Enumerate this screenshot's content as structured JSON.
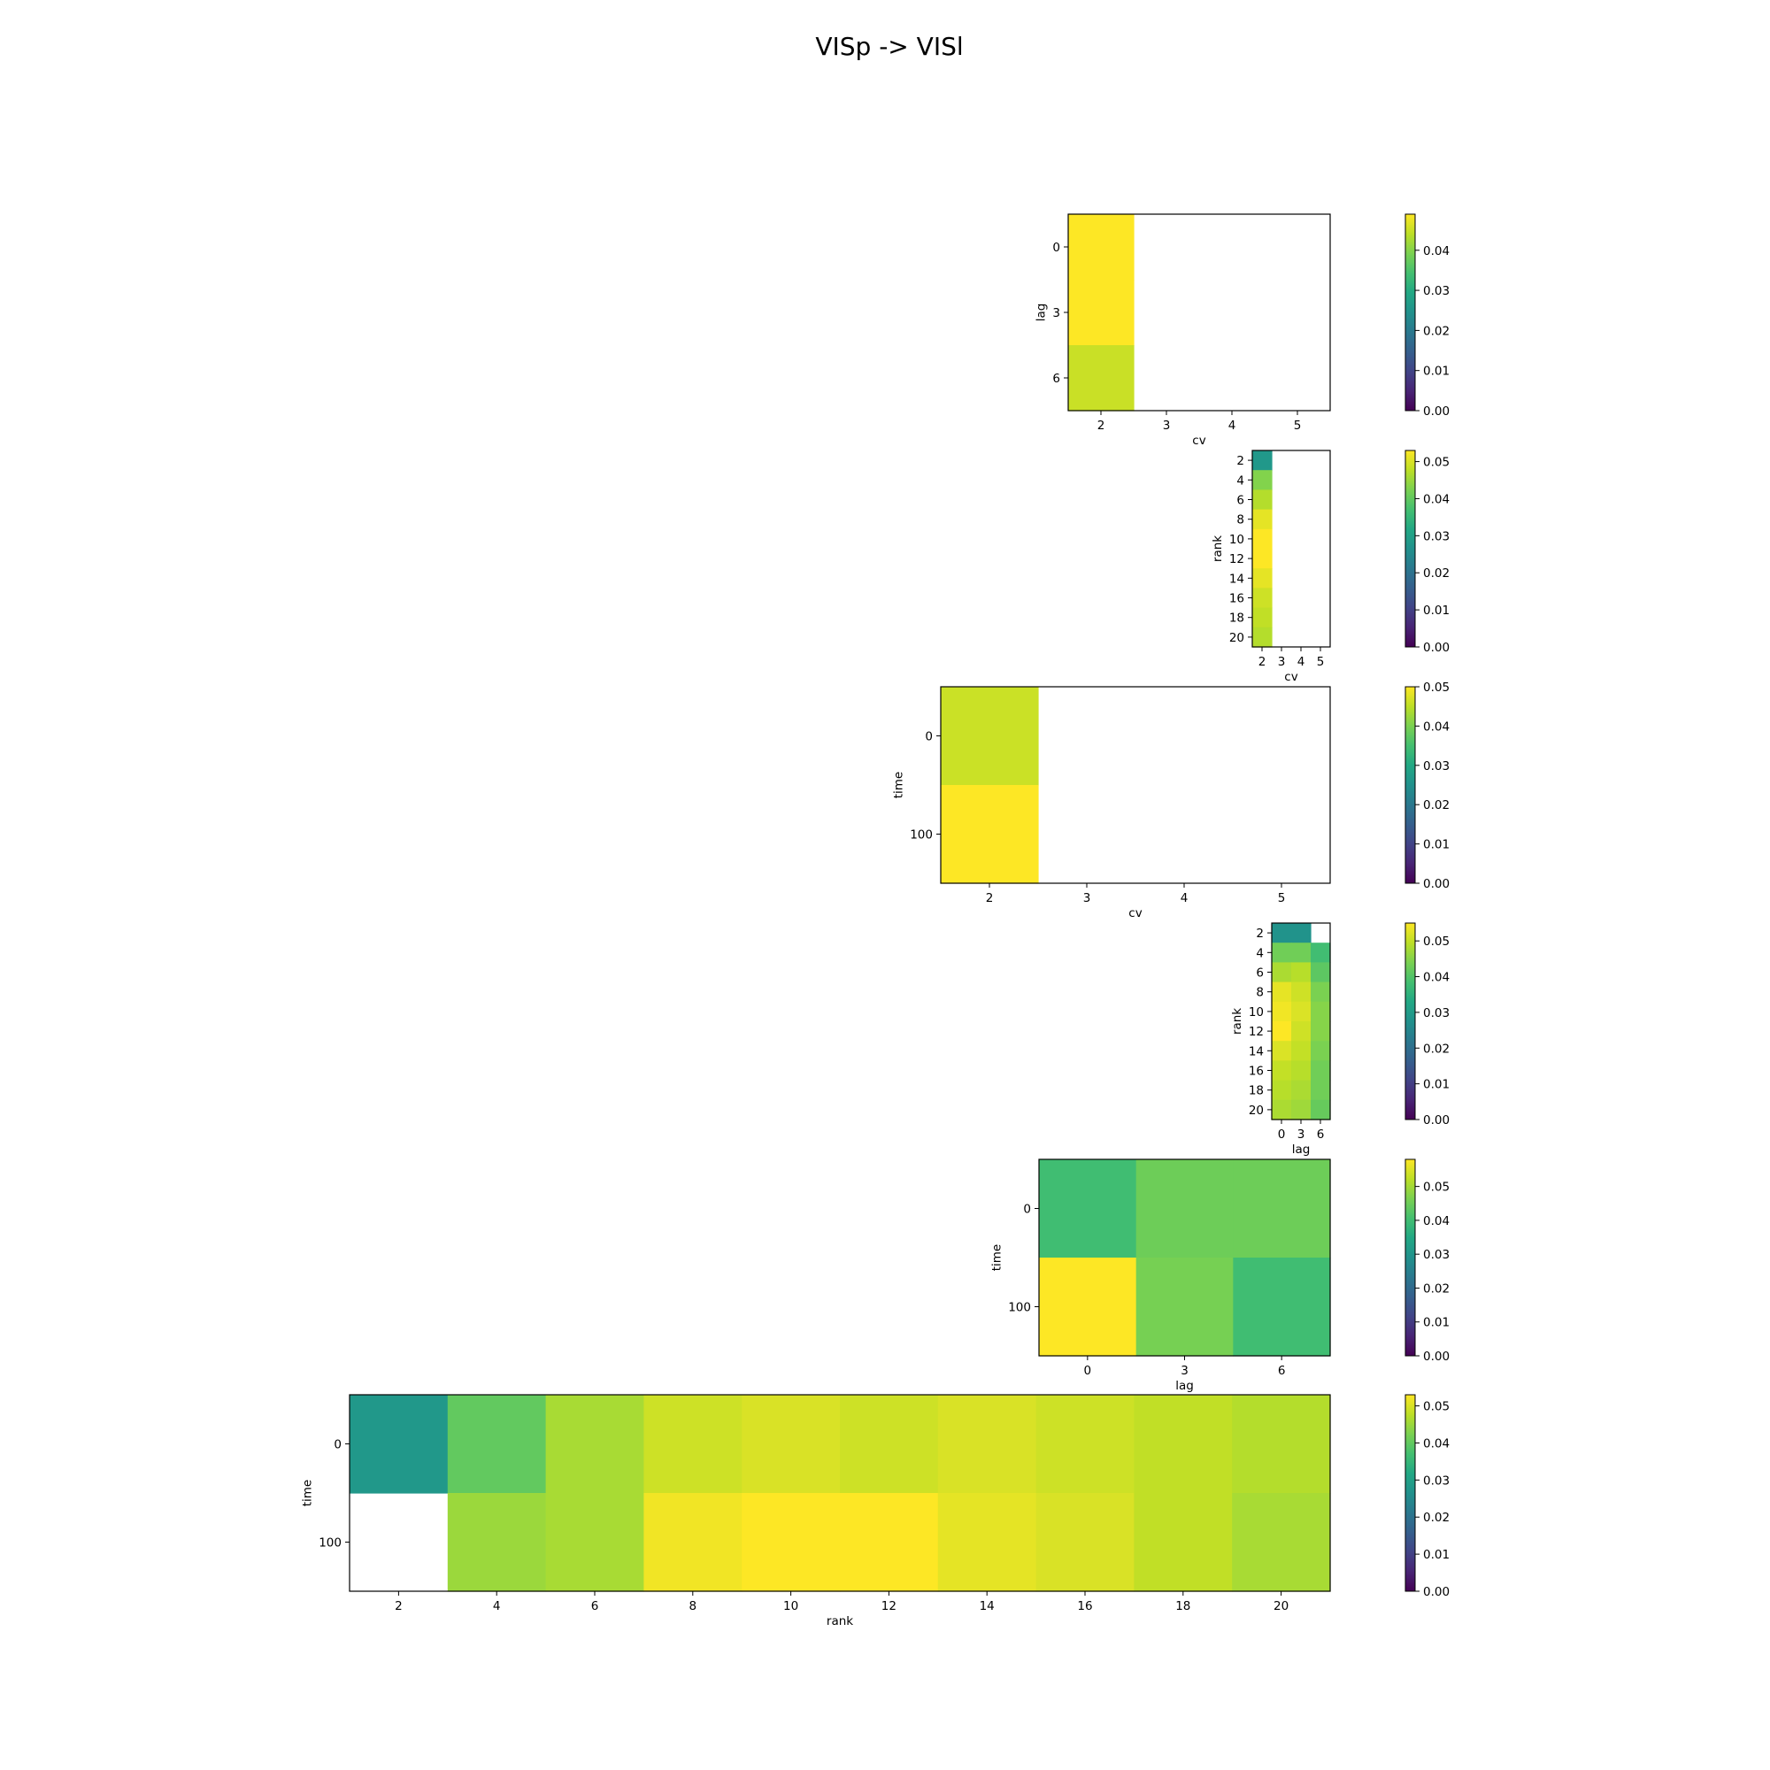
{
  "figure": {
    "title": "VISp -> VISl"
  },
  "colormap": {
    "name": "viridis",
    "stops": [
      "#440154",
      "#482475",
      "#414487",
      "#355f8d",
      "#2a788e",
      "#21918c",
      "#22a884",
      "#44bf70",
      "#7ad151",
      "#bddf26",
      "#fde725"
    ]
  },
  "chart_data": [
    {
      "type": "heatmap",
      "id": "lag-vs-cv",
      "xlabel": "cv",
      "ylabel": "lag",
      "x_categories": [
        "2",
        "3",
        "4",
        "5"
      ],
      "y_categories": [
        "0",
        "3",
        "6"
      ],
      "x_ticks": [
        "2",
        "3",
        "4",
        "5"
      ],
      "y_ticks": [
        "0",
        "3",
        "6"
      ],
      "values": [
        [
          0.049,
          null,
          null,
          null
        ],
        [
          0.049,
          null,
          null,
          null
        ],
        [
          0.045,
          null,
          null,
          null
        ]
      ],
      "colorbar": {
        "range": [
          0,
          0.049
        ],
        "ticks": [
          "0.00",
          "0.01",
          "0.02",
          "0.03",
          "0.04"
        ]
      }
    },
    {
      "type": "heatmap",
      "id": "rank-vs-cv",
      "xlabel": "cv",
      "ylabel": "rank",
      "x_categories": [
        "2",
        "3",
        "4",
        "5"
      ],
      "y_categories": [
        "2",
        "4",
        "6",
        "8",
        "10",
        "12",
        "14",
        "16",
        "18",
        "20"
      ],
      "x_ticks": [
        "2",
        "3",
        "4",
        "5"
      ],
      "y_ticks": [
        "2",
        "4",
        "6",
        "8",
        "10",
        "12",
        "14",
        "16",
        "18",
        "20"
      ],
      "values": [
        [
          0.028,
          null,
          null,
          null
        ],
        [
          0.043,
          null,
          null,
          null
        ],
        [
          0.047,
          null,
          null,
          null
        ],
        [
          0.051,
          null,
          null,
          null
        ],
        [
          0.053,
          null,
          null,
          null
        ],
        [
          0.053,
          null,
          null,
          null
        ],
        [
          0.051,
          null,
          null,
          null
        ],
        [
          0.049,
          null,
          null,
          null
        ],
        [
          0.048,
          null,
          null,
          null
        ],
        [
          0.047,
          null,
          null,
          null
        ]
      ],
      "colorbar": {
        "range": [
          0,
          0.053
        ],
        "ticks": [
          "0.00",
          "0.01",
          "0.02",
          "0.03",
          "0.04",
          "0.05"
        ]
      }
    },
    {
      "type": "heatmap",
      "id": "time-vs-cv",
      "xlabel": "cv",
      "ylabel": "time",
      "x_categories": [
        "2",
        "3",
        "4",
        "5"
      ],
      "y_categories": [
        "0",
        "100"
      ],
      "x_ticks": [
        "2",
        "3",
        "4",
        "5"
      ],
      "y_ticks": [
        "0",
        "100"
      ],
      "values": [
        [
          0.046,
          null,
          null,
          null
        ],
        [
          0.05,
          null,
          null,
          null
        ]
      ],
      "colorbar": {
        "range": [
          0,
          0.05
        ],
        "ticks": [
          "0.00",
          "0.01",
          "0.02",
          "0.03",
          "0.04",
          "0.05"
        ]
      }
    },
    {
      "type": "heatmap",
      "id": "rank-vs-lag",
      "xlabel": "lag",
      "ylabel": "rank",
      "x_categories": [
        "0",
        "3",
        "6"
      ],
      "y_categories": [
        "2",
        "4",
        "6",
        "8",
        "10",
        "12",
        "14",
        "16",
        "18",
        "20"
      ],
      "x_ticks": [
        "0",
        "3",
        "6"
      ],
      "y_ticks": [
        "2",
        "4",
        "6",
        "8",
        "10",
        "12",
        "14",
        "16",
        "18",
        "20"
      ],
      "values": [
        [
          0.028,
          0.028,
          null
        ],
        [
          0.043,
          0.043,
          0.038
        ],
        [
          0.048,
          0.049,
          0.041
        ],
        [
          0.053,
          0.051,
          0.044
        ],
        [
          0.054,
          0.052,
          0.045
        ],
        [
          0.055,
          0.051,
          0.045
        ],
        [
          0.052,
          0.05,
          0.044
        ],
        [
          0.05,
          0.049,
          0.043
        ],
        [
          0.049,
          0.048,
          0.043
        ],
        [
          0.048,
          0.047,
          0.042
        ]
      ],
      "colorbar": {
        "range": [
          0,
          0.055
        ],
        "ticks": [
          "0.00",
          "0.01",
          "0.02",
          "0.03",
          "0.04",
          "0.05"
        ]
      }
    },
    {
      "type": "heatmap",
      "id": "time-vs-lag",
      "xlabel": "lag",
      "ylabel": "time",
      "x_categories": [
        "0",
        "3",
        "6"
      ],
      "y_categories": [
        "0",
        "100"
      ],
      "x_ticks": [
        "0",
        "3",
        "6"
      ],
      "y_ticks": [
        "0",
        "100"
      ],
      "values": [
        [
          0.04,
          0.045,
          0.045
        ],
        [
          0.058,
          0.046,
          0.04
        ]
      ],
      "colorbar": {
        "range": [
          0,
          0.058
        ],
        "ticks": [
          "0.00",
          "0.01",
          "0.02",
          "0.03",
          "0.04",
          "0.05"
        ]
      }
    },
    {
      "type": "heatmap",
      "id": "time-vs-rank",
      "xlabel": "rank",
      "ylabel": "time",
      "x_categories": [
        "2",
        "4",
        "6",
        "8",
        "10",
        "12",
        "14",
        "16",
        "18",
        "20"
      ],
      "y_categories": [
        "0",
        "100"
      ],
      "x_ticks": [
        "2",
        "4",
        "6",
        "8",
        "10",
        "12",
        "14",
        "16",
        "18",
        "20"
      ],
      "y_ticks": [
        "0",
        "100"
      ],
      "values": [
        [
          0.028,
          0.04,
          0.046,
          0.049,
          0.05,
          0.049,
          0.05,
          0.049,
          0.048,
          0.047
        ],
        [
          null,
          0.045,
          0.046,
          0.052,
          0.053,
          0.053,
          0.051,
          0.05,
          0.048,
          0.046
        ]
      ],
      "colorbar": {
        "range": [
          0,
          0.053
        ],
        "ticks": [
          "0.00",
          "0.01",
          "0.02",
          "0.03",
          "0.04",
          "0.05"
        ]
      }
    }
  ]
}
